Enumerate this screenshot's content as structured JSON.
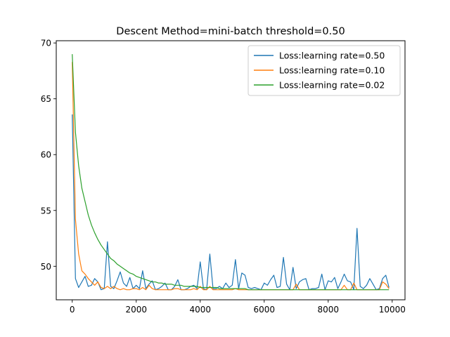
{
  "chart_data": {
    "type": "line",
    "title": "Descent Method=mini-batch threshold=0.50",
    "xlabel": "",
    "ylabel": "",
    "xlim": [
      -500,
      10400
    ],
    "ylim": [
      47.0,
      70.2
    ],
    "xticks": [
      0,
      2000,
      4000,
      6000,
      8000,
      10000
    ],
    "xtick_labels": [
      "0",
      "2000",
      "4000",
      "6000",
      "8000",
      "10000"
    ],
    "yticks": [
      50,
      55,
      60,
      65,
      70
    ],
    "ytick_labels": [
      "50",
      "55",
      "60",
      "65",
      "70"
    ],
    "grid": false,
    "legend_position": "top-right",
    "series": [
      {
        "name": "Loss:learning rate=0.50",
        "color": "#1f77b4",
        "x": [
          0,
          100,
          200,
          300,
          400,
          500,
          600,
          700,
          800,
          900,
          1000,
          1100,
          1200,
          1300,
          1400,
          1500,
          1600,
          1700,
          1800,
          1900,
          2000,
          2100,
          2200,
          2300,
          2400,
          2500,
          2600,
          2700,
          2800,
          2900,
          3000,
          3100,
          3200,
          3300,
          3400,
          3500,
          3600,
          3700,
          3800,
          3900,
          4000,
          4100,
          4200,
          4300,
          4400,
          4500,
          4600,
          4700,
          4800,
          4900,
          5000,
          5100,
          5200,
          5300,
          5400,
          5500,
          5600,
          5700,
          5800,
          5900,
          6000,
          6100,
          6200,
          6300,
          6400,
          6500,
          6600,
          6700,
          6800,
          6900,
          7000,
          7100,
          7200,
          7300,
          7400,
          7500,
          7600,
          7700,
          7800,
          7900,
          8000,
          8100,
          8200,
          8300,
          8400,
          8500,
          8600,
          8700,
          8800,
          8900,
          9000,
          9100,
          9200,
          9300,
          9400,
          9500,
          9600,
          9700,
          9800,
          9900
        ],
        "y": [
          63.6,
          48.9,
          48.1,
          48.6,
          49.1,
          48.2,
          48.3,
          48.9,
          48.6,
          47.9,
          48.0,
          52.2,
          48.2,
          48.0,
          48.7,
          49.5,
          48.5,
          48.2,
          49.0,
          48.0,
          48.3,
          48.0,
          49.6,
          48.0,
          48.4,
          48.7,
          47.9,
          48.0,
          48.2,
          48.5,
          47.9,
          47.9,
          48.2,
          48.8,
          47.9,
          47.9,
          48.0,
          48.2,
          48.3,
          48.0,
          50.4,
          48.0,
          47.9,
          51.1,
          48.0,
          48.0,
          48.2,
          48.0,
          48.5,
          48.1,
          48.3,
          50.6,
          48.0,
          49.4,
          49.2,
          48.1,
          48.0,
          48.1,
          48.0,
          47.9,
          48.5,
          48.3,
          48.8,
          49.2,
          48.1,
          48.2,
          50.8,
          48.4,
          47.9,
          49.9,
          48.0,
          48.6,
          48.8,
          48.9,
          47.9,
          48.0,
          48.0,
          48.1,
          49.3,
          47.9,
          48.7,
          48.6,
          49.0,
          48.0,
          48.6,
          49.3,
          48.7,
          48.6,
          47.9,
          53.4,
          48.2,
          48.0,
          48.3,
          48.9,
          48.4,
          47.9,
          48.0,
          48.9,
          49.2,
          48.1
        ]
      },
      {
        "name": "Loss:learning rate=0.10",
        "color": "#ff7f0e",
        "x": [
          0,
          100,
          200,
          300,
          400,
          500,
          600,
          700,
          800,
          900,
          1000,
          1100,
          1200,
          1300,
          1400,
          1500,
          1600,
          1700,
          1800,
          1900,
          2000,
          2100,
          2200,
          2300,
          2400,
          2500,
          2600,
          2700,
          2800,
          2900,
          3000,
          3100,
          3200,
          3300,
          3400,
          3500,
          3600,
          3700,
          3800,
          3900,
          4000,
          4100,
          4200,
          4300,
          4400,
          4500,
          4600,
          4700,
          4800,
          4900,
          5000,
          5100,
          5200,
          5300,
          5400,
          5500,
          5600,
          5700,
          5800,
          5900,
          6000,
          6100,
          6200,
          6300,
          6400,
          6500,
          6600,
          6700,
          6800,
          6900,
          7000,
          7100,
          7200,
          7300,
          7400,
          7500,
          7600,
          7700,
          7800,
          7900,
          8000,
          8100,
          8200,
          8300,
          8400,
          8500,
          8600,
          8700,
          8800,
          8900,
          9000,
          9100,
          9200,
          9300,
          9400,
          9500,
          9600,
          9700,
          9800,
          9900
        ],
        "y": [
          68.3,
          54.2,
          51.1,
          49.6,
          49.3,
          48.9,
          48.6,
          48.3,
          48.6,
          48.1,
          48.0,
          48.2,
          48.0,
          48.2,
          48.0,
          47.9,
          48.0,
          47.9,
          47.9,
          48.0,
          48.0,
          47.9,
          48.1,
          47.9,
          48.3,
          48.0,
          47.9,
          47.9,
          47.9,
          47.9,
          47.9,
          47.9,
          48.0,
          48.0,
          47.9,
          47.9,
          47.9,
          47.9,
          48.0,
          47.9,
          48.2,
          47.9,
          47.9,
          48.2,
          47.9,
          47.9,
          47.9,
          47.9,
          47.9,
          47.9,
          47.9,
          48.0,
          47.9,
          47.9,
          47.9,
          47.9,
          47.9,
          47.9,
          47.9,
          47.9,
          47.9,
          47.9,
          47.9,
          47.9,
          47.9,
          47.9,
          47.9,
          47.9,
          47.9,
          47.9,
          48.4,
          47.9,
          47.9,
          47.9,
          47.9,
          47.9,
          47.9,
          47.9,
          47.9,
          47.9,
          47.9,
          47.9,
          47.9,
          47.9,
          47.9,
          48.3,
          47.9,
          47.9,
          48.5,
          47.9,
          47.9,
          47.9,
          47.9,
          47.9,
          47.9,
          47.9,
          47.9,
          48.6,
          48.4,
          48.0
        ]
      },
      {
        "name": "Loss:learning rate=0.02",
        "color": "#2ca02c",
        "x": [
          0,
          100,
          200,
          300,
          400,
          500,
          600,
          700,
          800,
          900,
          1000,
          1100,
          1200,
          1300,
          1400,
          1500,
          1600,
          1700,
          1800,
          1900,
          2000,
          2100,
          2200,
          2300,
          2400,
          2500,
          2600,
          2700,
          2800,
          2900,
          3000,
          3100,
          3200,
          3300,
          3400,
          3500,
          3600,
          3700,
          3800,
          3900,
          4000,
          4100,
          4200,
          4300,
          4400,
          4500,
          4600,
          4700,
          4800,
          4900,
          5000,
          5100,
          5200,
          5300,
          5400,
          5500,
          5600,
          5700,
          5800,
          5900,
          6000,
          6100,
          6200,
          6300,
          6400,
          6500,
          6600,
          6700,
          6800,
          6900,
          7000,
          7100,
          7200,
          7300,
          7400,
          7500,
          7600,
          7700,
          7800,
          7900,
          8000,
          8100,
          8200,
          8300,
          8400,
          8500,
          8600,
          8700,
          8800,
          8900,
          9000,
          9100,
          9200,
          9300,
          9400,
          9500,
          9600,
          9700,
          9800,
          9900
        ],
        "y": [
          69.0,
          62.0,
          59.0,
          57.0,
          55.8,
          54.6,
          53.7,
          53.0,
          52.4,
          51.9,
          51.5,
          51.1,
          50.7,
          50.5,
          50.2,
          50.0,
          49.8,
          49.6,
          49.4,
          49.3,
          49.1,
          49.0,
          48.9,
          48.8,
          48.7,
          48.6,
          48.6,
          48.5,
          48.5,
          48.4,
          48.4,
          48.4,
          48.3,
          48.3,
          48.3,
          48.2,
          48.2,
          48.2,
          48.2,
          48.2,
          48.1,
          48.1,
          48.1,
          48.1,
          48.1,
          48.1,
          48.0,
          48.0,
          48.0,
          48.0,
          48.0,
          48.0,
          48.0,
          48.0,
          48.0,
          47.9,
          47.9,
          47.9,
          47.9,
          47.9,
          47.9,
          47.9,
          47.9,
          47.9,
          47.9,
          47.9,
          47.9,
          47.9,
          47.9,
          47.9,
          47.9,
          47.9,
          47.9,
          47.9,
          47.9,
          47.9,
          47.9,
          47.9,
          47.9,
          47.9,
          47.9,
          47.9,
          47.9,
          47.9,
          47.9,
          47.9,
          47.9,
          47.9,
          47.9,
          47.9,
          47.9,
          47.9,
          47.9,
          47.9,
          47.9,
          47.9,
          47.9,
          47.9,
          47.9,
          47.9
        ]
      }
    ]
  }
}
